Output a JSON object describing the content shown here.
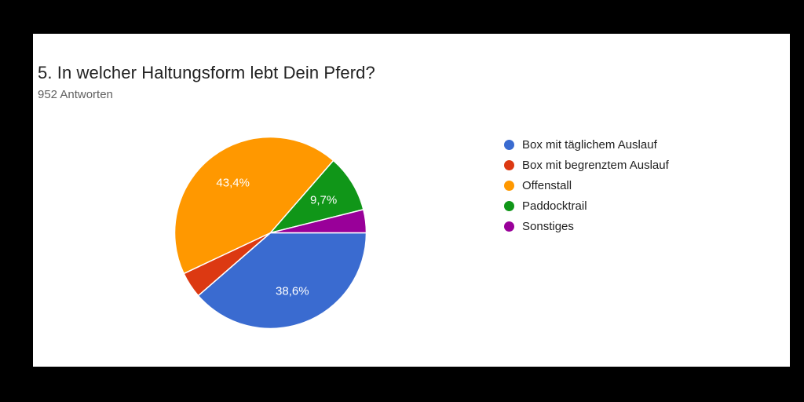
{
  "page": {
    "background_color": "#000000",
    "card_background": "#ffffff"
  },
  "header": {
    "title": "5. In welcher Haltungsform lebt Dein Pferd?",
    "response_count": "952 Antworten"
  },
  "chart_data": {
    "type": "pie",
    "title": "5. In welcher Haltungsform lebt Dein Pferd?",
    "subtitle": "952 Antworten",
    "total_responses": 952,
    "legend_position": "right",
    "start_angle_deg": 90,
    "direction": "clockwise",
    "slices": [
      {
        "label": "Box mit täglichem Auslauf",
        "value_pct": 38.6,
        "display_label": "38,6%",
        "color": "#3A6BD0"
      },
      {
        "label": "Box mit begrenztem Auslauf",
        "value_pct": 4.4,
        "display_label": "",
        "color": "#DC3912"
      },
      {
        "label": "Offenstall",
        "value_pct": 43.4,
        "display_label": "43,4%",
        "color": "#FF9800"
      },
      {
        "label": "Paddocktrail",
        "value_pct": 9.7,
        "display_label": "9,7%",
        "color": "#109618"
      },
      {
        "label": "Sonstiges",
        "value_pct": 3.9,
        "display_label": "",
        "color": "#990099"
      }
    ]
  }
}
